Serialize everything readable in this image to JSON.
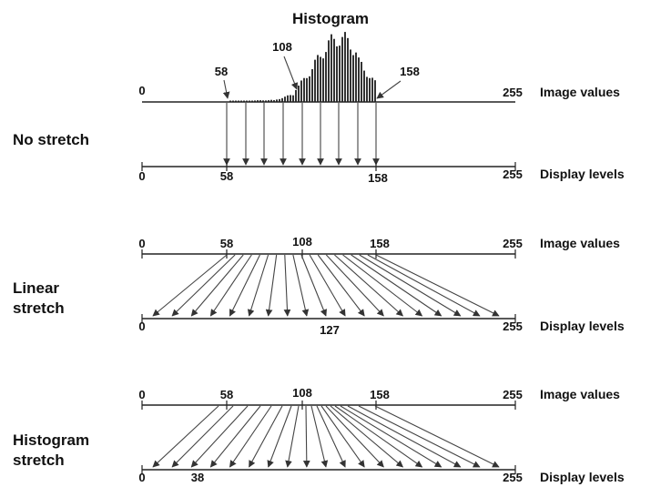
{
  "histogram_title": "Histogram",
  "histogram_labels": {
    "left": "58",
    "peak": "108",
    "right": "158"
  },
  "axis_texts": {
    "image_values": "Image values",
    "display_levels": "Display levels"
  },
  "panels": [
    {
      "label_lines": [
        "No stretch"
      ],
      "top_ticks": [
        "0",
        "255"
      ],
      "bottom_ticks": [
        "0",
        "58",
        "158",
        "255"
      ]
    },
    {
      "label_lines": [
        "Linear",
        "stretch"
      ],
      "top_ticks": [
        "0",
        "58",
        "108",
        "158",
        "255"
      ],
      "bottom_ticks": [
        "0",
        "127",
        "255"
      ]
    },
    {
      "label_lines": [
        "Histogram",
        "stretch"
      ],
      "top_ticks": [
        "0",
        "58",
        "108",
        "158",
        "255"
      ],
      "bottom_ticks": [
        "0",
        "38",
        "255"
      ]
    }
  ]
}
